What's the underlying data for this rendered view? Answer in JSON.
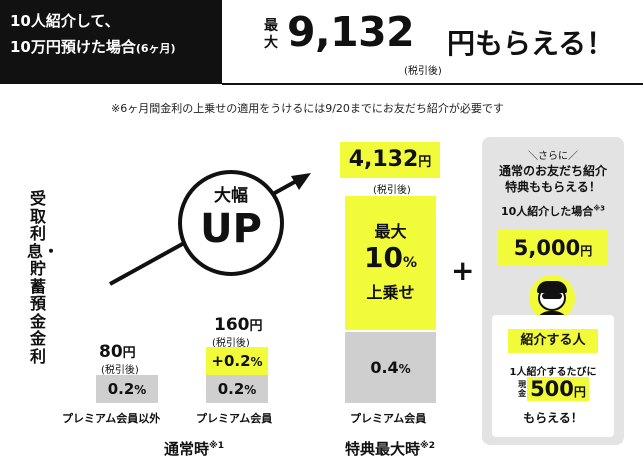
{
  "header": {
    "line1": "10人紹介して、",
    "line2": "10万円預けた場合",
    "period": "(6ヶ月)"
  },
  "headline": {
    "max_label": "最大",
    "amount": "9,132",
    "unit": "円もらえる！",
    "tax_note": "(税引後)"
  },
  "note": "※6ヶ月間金利の上乗せの適用をうけるには9/20までにお友だち紹介が必要です",
  "y_axis_label": "受取利息・貯蓄預金金利",
  "badge": {
    "line1": "大幅",
    "line2": "UP"
  },
  "bars": [
    {
      "amount": "80",
      "unit": "円",
      "tax": "(税引後)",
      "base_rate": "0.2",
      "pct": "%",
      "category": "プレミアム会員以外"
    },
    {
      "amount": "160",
      "unit": "円",
      "tax": "(税引後)",
      "bonus_rate": "+0.2",
      "base_rate": "0.2",
      "pct": "%",
      "category": "プレミアム会員"
    },
    {
      "amount": "4,132",
      "unit": "円",
      "tax": "(税引後)",
      "bonus_label_1": "最大",
      "bonus_rate": "10",
      "pct": "%",
      "bonus_label_2": "上乗せ",
      "base_rate": "0.4",
      "category": "プレミアム会員"
    }
  ],
  "groups": [
    {
      "label": "通常時",
      "note": "※1"
    },
    {
      "label": "特典最大時",
      "note": "※2"
    }
  ],
  "plus_sign": "+",
  "bonus_panel": {
    "sub": "＼さらに／",
    "title_1": "通常のお友だち紹介",
    "title_2": "特典ももらえる！",
    "condition": "10人紹介した場合",
    "condition_note": "※3",
    "amount": "5,000",
    "unit": "円",
    "person_label": "紹介する人",
    "detail_1": "1人紹介するたびに",
    "cash_label_1": "現",
    "cash_label_2": "金",
    "cash_amount": "500",
    "cash_unit": "円",
    "detail_2": "もらえる！"
  },
  "colors": {
    "accent": "#f2fb3a",
    "gray_bar": "#cfcfcf",
    "panel": "#e3e3e3",
    "text": "#111111"
  }
}
